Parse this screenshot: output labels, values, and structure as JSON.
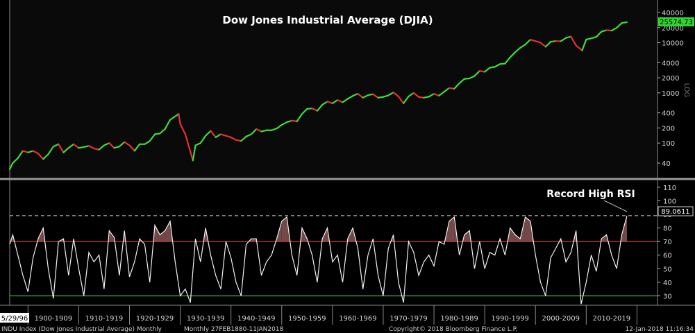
{
  "chart_data": [
    {
      "type": "line",
      "title": "Dow Jones Industrial Average (DJIA)",
      "scale": "log",
      "axis_label": "LOG",
      "y_ticks": [
        40,
        100,
        200,
        400,
        1000,
        2000,
        4000,
        10000,
        20000,
        40000
      ],
      "last_value_label": "25574.73",
      "last_value": 25574.73,
      "x_range": [
        1896.4,
        2018.03
      ],
      "colors": {
        "up": "#3ddc3d",
        "down": "#e83030",
        "last_badge": "#2fd62f"
      },
      "series": [
        {
          "x": [
            1896.4,
            1897,
            1898,
            1899,
            1900,
            1901,
            1902,
            1903,
            1904,
            1905,
            1906,
            1907,
            1908,
            1909,
            1910,
            1911,
            1912,
            1913,
            1914,
            1915,
            1916,
            1917,
            1918,
            1919,
            1920,
            1921,
            1922,
            1923,
            1924,
            1925,
            1926,
            1927,
            1928,
            1929.7,
            1930,
            1931,
            1932.5,
            1933,
            1934,
            1935,
            1936,
            1937,
            1938,
            1939,
            1940,
            1941,
            1942,
            1943,
            1944,
            1945,
            1946,
            1947,
            1948,
            1949,
            1950,
            1951,
            1952,
            1953,
            1954,
            1955,
            1956,
            1957,
            1958,
            1959,
            1960,
            1961,
            1962,
            1963,
            1964,
            1965,
            1966,
            1967,
            1968,
            1969,
            1970,
            1971,
            1972,
            1973,
            1974,
            1975,
            1976,
            1977,
            1978,
            1979,
            1980,
            1981,
            1982,
            1983,
            1984,
            1985,
            1986,
            1987,
            1988,
            1989,
            1990,
            1991,
            1992,
            1993,
            1994,
            1995,
            1996,
            1997,
            1998,
            1999,
            2000,
            2001,
            2002,
            2003,
            2004,
            2005,
            2006,
            2007,
            2008,
            2009.2,
            2010,
            2011,
            2012,
            2013,
            2014,
            2015,
            2016,
            2017,
            2018.03
          ],
          "y": [
            30,
            40,
            50,
            70,
            65,
            70,
            62,
            48,
            60,
            85,
            95,
            65,
            80,
            95,
            80,
            83,
            88,
            78,
            74,
            90,
            100,
            80,
            85,
            105,
            90,
            70,
            95,
            95,
            110,
            150,
            155,
            190,
            290,
            380,
            240,
            150,
            45,
            90,
            100,
            140,
            175,
            130,
            150,
            140,
            130,
            115,
            110,
            135,
            150,
            190,
            170,
            180,
            180,
            195,
            230,
            260,
            280,
            270,
            380,
            480,
            490,
            440,
            580,
            670,
            620,
            720,
            650,
            760,
            870,
            960,
            800,
            900,
            940,
            800,
            830,
            890,
            1020,
            850,
            620,
            850,
            1000,
            830,
            800,
            840,
            960,
            880,
            1050,
            1250,
            1210,
            1550,
            1900,
            1940,
            2170,
            2750,
            2630,
            3170,
            3300,
            3750,
            3830,
            5100,
            6450,
            7900,
            9200,
            11500,
            10800,
            10000,
            8300,
            10450,
            10780,
            10700,
            12460,
            13260,
            8800,
            7000,
            11580,
            12200,
            13100,
            16580,
            17800,
            17400,
            19760,
            24700,
            25574
          ]
        }
      ]
    },
    {
      "type": "line",
      "name": "RSI",
      "annotation": "Record High RSI",
      "y_ticks": [
        30,
        40,
        50,
        60,
        70,
        80,
        90,
        100,
        110
      ],
      "ylim": [
        20,
        113
      ],
      "reference_lines": [
        30,
        70,
        89.0611
      ],
      "last_value_label": "89.0611",
      "last_value": 89.0611,
      "colors": {
        "line": "#f2f2f2",
        "overbought": "#c84040",
        "oversold": "#2faa2f",
        "fill": "#9a6060"
      },
      "series": [
        {
          "x": [
            1896.4,
            1897,
            1898,
            1899,
            1900,
            1901,
            1902,
            1903,
            1904,
            1905,
            1906,
            1907,
            1908,
            1909,
            1910,
            1911,
            1912,
            1913,
            1914,
            1915,
            1916,
            1917,
            1918,
            1919,
            1920,
            1921,
            1922,
            1923,
            1924,
            1925,
            1926,
            1927,
            1928,
            1929,
            1930,
            1931,
            1932,
            1933,
            1934,
            1935,
            1936,
            1937,
            1938,
            1939,
            1940,
            1941,
            1942,
            1943,
            1944,
            1945,
            1946,
            1947,
            1948,
            1949,
            1950,
            1951,
            1952,
            1953,
            1954,
            1955,
            1956,
            1957,
            1958,
            1959,
            1960,
            1961,
            1962,
            1963,
            1964,
            1965,
            1966,
            1967,
            1968,
            1969,
            1970,
            1971,
            1972,
            1973,
            1974,
            1975,
            1976,
            1977,
            1978,
            1979,
            1980,
            1981,
            1982,
            1983,
            1984,
            1985,
            1986,
            1987,
            1988,
            1989,
            1990,
            1991,
            1992,
            1993,
            1994,
            1995,
            1996,
            1997,
            1998,
            1999,
            2000,
            2001,
            2002,
            2003,
            2004,
            2005,
            2006,
            2007,
            2008,
            2009,
            2010,
            2011,
            2012,
            2013,
            2014,
            2015,
            2016,
            2017,
            2018.03
          ],
          "y": [
            68,
            75,
            60,
            45,
            33,
            58,
            72,
            80,
            50,
            28,
            70,
            72,
            45,
            72,
            50,
            30,
            62,
            55,
            60,
            35,
            78,
            73,
            45,
            78,
            44,
            55,
            72,
            68,
            40,
            82,
            75,
            78,
            85,
            55,
            30,
            35,
            25,
            72,
            55,
            80,
            60,
            45,
            35,
            70,
            58,
            40,
            30,
            68,
            72,
            72,
            45,
            55,
            60,
            72,
            85,
            88,
            60,
            45,
            80,
            72,
            60,
            40,
            72,
            80,
            55,
            60,
            40,
            72,
            80,
            65,
            35,
            60,
            72,
            45,
            30,
            65,
            75,
            40,
            25,
            70,
            62,
            45,
            55,
            60,
            52,
            70,
            68,
            85,
            88,
            60,
            75,
            78,
            50,
            70,
            50,
            62,
            60,
            72,
            60,
            80,
            75,
            72,
            88,
            85,
            60,
            40,
            30,
            58,
            65,
            72,
            55,
            62,
            78,
            24,
            40,
            60,
            48,
            72,
            75,
            60,
            50,
            75,
            89.06
          ]
        }
      ]
    }
  ],
  "x_axis": {
    "ticks": [
      "1900-1909",
      "1910-1919",
      "1920-1929",
      "1930-1939",
      "1940-1949",
      "1950-1959",
      "1960-1969",
      "1970-1979",
      "1980-1989",
      "1990-1999",
      "2000-2009",
      "2010-2019"
    ],
    "start_label": "5/29/96"
  },
  "footer": {
    "left": "INDU Index (Dow Jones Industrial Average) Monthly",
    "mid": "Monthly 27FEB1880-11JAN2018",
    "copyright": "Copyright© 2018 Bloomberg Finance L.P.",
    "timestamp": "12-Jan-2018 11:16:34"
  }
}
